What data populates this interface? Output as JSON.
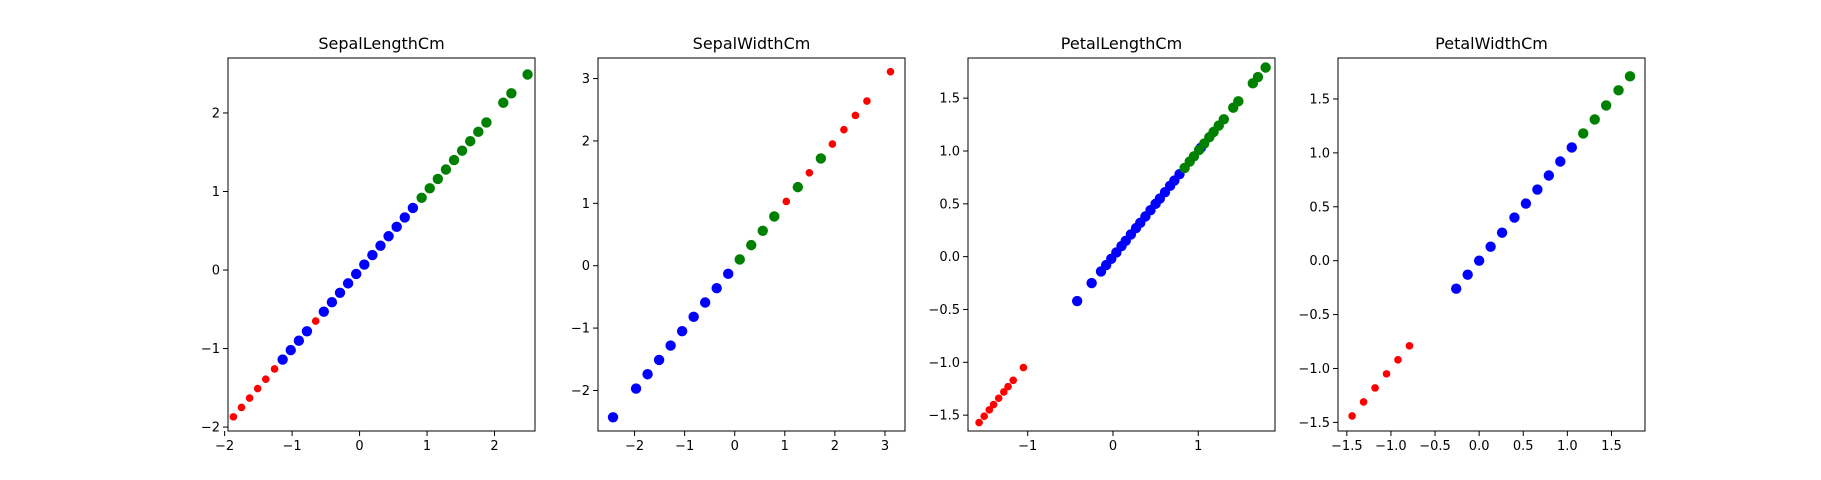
{
  "chart_data": [
    {
      "type": "scatter",
      "title": "SepalLengthCm",
      "xlim": [
        -1.95,
        2.6
      ],
      "ylim": [
        -2.05,
        2.7
      ],
      "xticks": [
        {
          "v": -2,
          "label": "−2"
        },
        {
          "v": -1,
          "label": "−1"
        },
        {
          "v": 0,
          "label": "0"
        },
        {
          "v": 1,
          "label": "1"
        },
        {
          "v": 2,
          "label": "2"
        }
      ],
      "yticks": [
        {
          "v": -2,
          "label": "−2"
        },
        {
          "v": -1,
          "label": "−1"
        },
        {
          "v": 0,
          "label": "0"
        },
        {
          "v": 1,
          "label": "1"
        },
        {
          "v": 2,
          "label": "2"
        }
      ],
      "series": [
        {
          "color": "#ff0000",
          "size": "small",
          "points": [
            [
              -1.87,
              -1.87
            ],
            [
              -1.75,
              -1.75
            ],
            [
              -1.63,
              -1.63
            ],
            [
              -1.51,
              -1.51
            ],
            [
              -1.39,
              -1.39
            ],
            [
              -1.26,
              -1.26
            ],
            [
              -0.65,
              -0.65
            ]
          ]
        },
        {
          "color": "#0000ff",
          "size": "large",
          "points": [
            [
              -1.14,
              -1.14
            ],
            [
              -1.02,
              -1.02
            ],
            [
              -0.9,
              -0.9
            ],
            [
              -0.78,
              -0.78
            ],
            [
              -0.53,
              -0.53
            ],
            [
              -0.41,
              -0.41
            ],
            [
              -0.29,
              -0.29
            ],
            [
              -0.17,
              -0.17
            ],
            [
              -0.05,
              -0.05
            ],
            [
              0.07,
              0.07
            ],
            [
              0.19,
              0.19
            ],
            [
              0.31,
              0.31
            ],
            [
              0.43,
              0.43
            ],
            [
              0.55,
              0.55
            ],
            [
              0.67,
              0.67
            ],
            [
              0.79,
              0.79
            ]
          ]
        },
        {
          "color": "#008000",
          "size": "large",
          "points": [
            [
              0.92,
              0.92
            ],
            [
              1.04,
              1.04
            ],
            [
              1.16,
              1.16
            ],
            [
              1.28,
              1.28
            ],
            [
              1.4,
              1.4
            ],
            [
              1.52,
              1.52
            ],
            [
              1.64,
              1.64
            ],
            [
              1.76,
              1.76
            ],
            [
              1.88,
              1.88
            ],
            [
              2.13,
              2.13
            ],
            [
              2.25,
              2.25
            ],
            [
              2.49,
              2.49
            ]
          ]
        }
      ]
    },
    {
      "type": "scatter",
      "title": "SepalWidthCm",
      "xlim": [
        -2.73,
        3.4
      ],
      "ylim": [
        -2.65,
        3.33
      ],
      "xticks": [
        {
          "v": -2,
          "label": "−2"
        },
        {
          "v": -1,
          "label": "−1"
        },
        {
          "v": 0,
          "label": "0"
        },
        {
          "v": 1,
          "label": "1"
        },
        {
          "v": 2,
          "label": "2"
        },
        {
          "v": 3,
          "label": "3"
        }
      ],
      "yticks": [
        {
          "v": -2,
          "label": "−2"
        },
        {
          "v": -1,
          "label": "−1"
        },
        {
          "v": 0,
          "label": "0"
        },
        {
          "v": 1,
          "label": "1"
        },
        {
          "v": 2,
          "label": "2"
        },
        {
          "v": 3,
          "label": "3"
        }
      ],
      "series": [
        {
          "color": "#ff0000",
          "size": "small",
          "points": [
            [
              1.03,
              1.03
            ],
            [
              1.49,
              1.49
            ],
            [
              1.95,
              1.95
            ],
            [
              2.18,
              2.18
            ],
            [
              2.41,
              2.41
            ],
            [
              2.64,
              2.64
            ],
            [
              3.11,
              3.11
            ]
          ]
        },
        {
          "color": "#0000ff",
          "size": "large",
          "points": [
            [
              -2.43,
              -2.43
            ],
            [
              -1.97,
              -1.97
            ],
            [
              -1.74,
              -1.74
            ],
            [
              -1.51,
              -1.51
            ],
            [
              -1.28,
              -1.28
            ],
            [
              -1.05,
              -1.05
            ],
            [
              -0.82,
              -0.82
            ],
            [
              -0.59,
              -0.59
            ],
            [
              -0.36,
              -0.36
            ],
            [
              -0.13,
              -0.13
            ]
          ]
        },
        {
          "color": "#008000",
          "size": "large",
          "points": [
            [
              0.1,
              0.1
            ],
            [
              0.33,
              0.33
            ],
            [
              0.56,
              0.56
            ],
            [
              0.79,
              0.79
            ],
            [
              1.26,
              1.26
            ],
            [
              1.72,
              1.72
            ]
          ]
        }
      ]
    },
    {
      "type": "scatter",
      "title": "PetalLengthCm",
      "xlim": [
        -1.7,
        1.9
      ],
      "ylim": [
        -1.65,
        1.88
      ],
      "xticks": [
        {
          "v": -1,
          "label": "−1"
        },
        {
          "v": 0,
          "label": "0"
        },
        {
          "v": 1,
          "label": "1"
        }
      ],
      "yticks": [
        {
          "v": -1.5,
          "label": "−1.5"
        },
        {
          "v": -1,
          "label": "−1.0"
        },
        {
          "v": -0.5,
          "label": "−0.5"
        },
        {
          "v": 0,
          "label": "0.0"
        },
        {
          "v": 0.5,
          "label": "0.5"
        },
        {
          "v": 1,
          "label": "1.0"
        },
        {
          "v": 1.5,
          "label": "1.5"
        }
      ],
      "series": [
        {
          "color": "#ff0000",
          "size": "small",
          "points": [
            [
              -1.57,
              -1.57
            ],
            [
              -1.51,
              -1.51
            ],
            [
              -1.45,
              -1.45
            ],
            [
              -1.4,
              -1.4
            ],
            [
              -1.34,
              -1.34
            ],
            [
              -1.28,
              -1.28
            ],
            [
              -1.23,
              -1.23
            ],
            [
              -1.17,
              -1.17
            ],
            [
              -1.05,
              -1.05
            ]
          ]
        },
        {
          "color": "#0000ff",
          "size": "large",
          "points": [
            [
              -0.42,
              -0.42
            ],
            [
              -0.25,
              -0.25
            ],
            [
              -0.14,
              -0.14
            ],
            [
              -0.08,
              -0.08
            ],
            [
              -0.02,
              -0.02
            ],
            [
              0.04,
              0.04
            ],
            [
              0.1,
              0.1
            ],
            [
              0.15,
              0.15
            ],
            [
              0.21,
              0.21
            ],
            [
              0.27,
              0.27
            ],
            [
              0.32,
              0.32
            ],
            [
              0.38,
              0.38
            ],
            [
              0.44,
              0.44
            ],
            [
              0.5,
              0.5
            ],
            [
              0.55,
              0.55
            ],
            [
              0.61,
              0.61
            ],
            [
              0.67,
              0.67
            ],
            [
              0.72,
              0.72
            ],
            [
              0.78,
              0.78
            ],
            [
              1.03,
              1.03
            ]
          ]
        },
        {
          "color": "#008000",
          "size": "large",
          "points": [
            [
              0.84,
              0.84
            ],
            [
              0.9,
              0.9
            ],
            [
              0.95,
              0.95
            ],
            [
              1.01,
              1.01
            ],
            [
              1.07,
              1.07
            ],
            [
              1.13,
              1.13
            ],
            [
              1.18,
              1.18
            ],
            [
              1.24,
              1.24
            ],
            [
              1.3,
              1.3
            ],
            [
              1.41,
              1.41
            ],
            [
              1.47,
              1.47
            ],
            [
              1.64,
              1.64
            ],
            [
              1.7,
              1.7
            ],
            [
              1.79,
              1.79
            ]
          ]
        }
      ]
    },
    {
      "type": "scatter",
      "title": "PetalWidthCm",
      "xlim": [
        -1.6,
        1.88
      ],
      "ylim": [
        -1.58,
        1.88
      ],
      "xticks": [
        {
          "v": -1.5,
          "label": "−1.5"
        },
        {
          "v": -1,
          "label": "−1.0"
        },
        {
          "v": -0.5,
          "label": "−0.5"
        },
        {
          "v": 0,
          "label": "0.0"
        },
        {
          "v": 0.5,
          "label": "0.5"
        },
        {
          "v": 1,
          "label": "1.0"
        },
        {
          "v": 1.5,
          "label": "1.5"
        }
      ],
      "yticks": [
        {
          "v": -1.5,
          "label": "−1.5"
        },
        {
          "v": -1,
          "label": "−1.0"
        },
        {
          "v": -0.5,
          "label": "−0.5"
        },
        {
          "v": 0,
          "label": "0.0"
        },
        {
          "v": 0.5,
          "label": "0.5"
        },
        {
          "v": 1,
          "label": "1.0"
        },
        {
          "v": 1.5,
          "label": "1.5"
        }
      ],
      "series": [
        {
          "color": "#ff0000",
          "size": "small",
          "points": [
            [
              -1.44,
              -1.44
            ],
            [
              -1.31,
              -1.31
            ],
            [
              -1.18,
              -1.18
            ],
            [
              -1.05,
              -1.05
            ],
            [
              -0.92,
              -0.92
            ],
            [
              -0.79,
              -0.79
            ]
          ]
        },
        {
          "color": "#0000ff",
          "size": "large",
          "points": [
            [
              -0.26,
              -0.26
            ],
            [
              -0.13,
              -0.13
            ],
            [
              0,
              0
            ],
            [
              0.13,
              0.13
            ],
            [
              0.26,
              0.26
            ],
            [
              0.4,
              0.4
            ],
            [
              0.53,
              0.53
            ],
            [
              0.66,
              0.66
            ],
            [
              0.79,
              0.79
            ],
            [
              0.92,
              0.92
            ],
            [
              1.05,
              1.05
            ]
          ]
        },
        {
          "color": "#008000",
          "size": "large",
          "points": [
            [
              1.18,
              1.18
            ],
            [
              1.31,
              1.31
            ],
            [
              1.44,
              1.44
            ],
            [
              1.58,
              1.58
            ],
            [
              1.71,
              1.71
            ]
          ]
        }
      ]
    }
  ]
}
